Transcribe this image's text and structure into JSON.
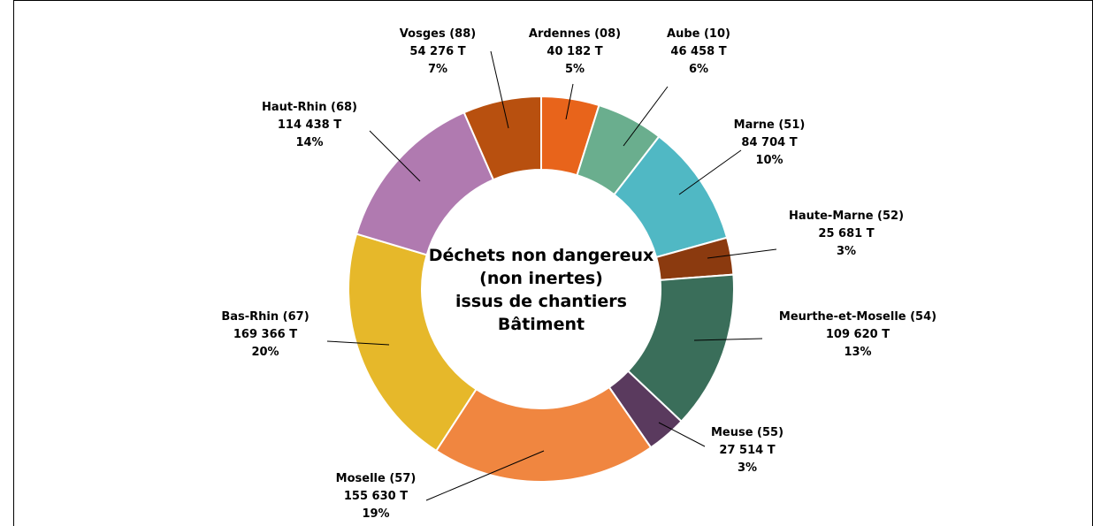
{
  "chart_data": {
    "type": "donut",
    "title": [
      "Déchets non dangereux",
      "(non inertes)",
      "issus de chantiers",
      "Bâtiment"
    ],
    "categories": [
      "Ardennes (08)",
      "Aube (10)",
      "Marne (51)",
      "Haute-Marne (52)",
      "Meurthe-et-Moselle (54)",
      "Meuse (55)",
      "Moselle (57)",
      "Bas-Rhin (67)",
      "Haut-Rhin (68)",
      "Vosges (88)"
    ],
    "values": [
      40182,
      46458,
      84704,
      25681,
      109620,
      27514,
      155630,
      169366,
      114438,
      54276
    ],
    "value_labels": [
      "40 182 T",
      "46 458 T",
      "84 704 T",
      "25 681 T",
      "109 620 T",
      "27 514 T",
      "155 630 T",
      "169 366 T",
      "114 438 T",
      "54 276 T"
    ],
    "percent_labels": [
      "5%",
      "6%",
      "10%",
      "3%",
      "13%",
      "3%",
      "19%",
      "20%",
      "14%",
      "7%"
    ],
    "colors": [
      "#e8641b",
      "#6aae8e",
      "#50b8c4",
      "#8b3a0f",
      "#3a6e5a",
      "#5a3a5e",
      "#f08640",
      "#e6b82a",
      "#b07ab0",
      "#b8500f"
    ]
  }
}
